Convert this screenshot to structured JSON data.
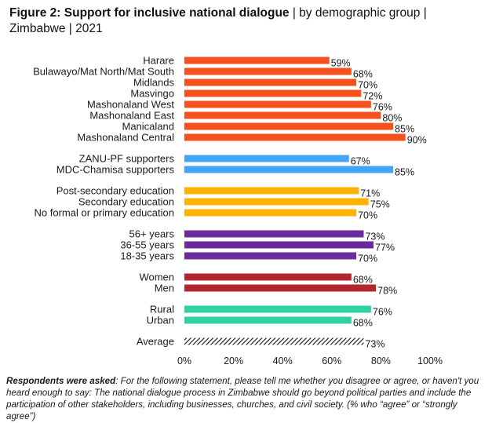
{
  "title": {
    "bold": "Figure 2: Support for inclusive national dialogue",
    "rest": " | by demographic group | Zimbabwe | 2021"
  },
  "note": {
    "lead": "Respondents were asked",
    "text": ": For the following statement, please tell me whether you disagree or agree, or haven't you heard enough to say: The national dialogue process in Zimbabwe should go beyond political parties and include the participation of other stakeholders, including businesses, churches, and civil society. (% who “agree” or “strongly agree”)"
  },
  "chart_data": {
    "type": "bar",
    "orientation": "horizontal",
    "xlim": [
      0,
      100
    ],
    "x_ticks": [
      "0%",
      "20%",
      "40%",
      "60%",
      "80%",
      "100%"
    ],
    "grid": false,
    "groups": [
      {
        "color": "#f4511e",
        "categories": [
          "Harare",
          "Bulawayo/Mat North/Mat South",
          "Midlands",
          "Masvingo",
          "Mashonaland West",
          "Mashonaland East",
          "Manicaland",
          "Mashonaland Central"
        ],
        "values": [
          59,
          68,
          70,
          72,
          76,
          80,
          85,
          90
        ]
      },
      {
        "color": "#42a5f5",
        "categories": [
          "ZANU-PF supporters",
          "MDC-Chamisa supporters"
        ],
        "values": [
          67,
          85
        ]
      },
      {
        "color": "#ffb300",
        "categories": [
          "Post-secondary education",
          "Secondary education",
          "No formal or primary education"
        ],
        "values": [
          71,
          75,
          70
        ]
      },
      {
        "color": "#6a2c9c",
        "categories": [
          "56+ years",
          "36-55 years",
          "18-35 years"
        ],
        "values": [
          73,
          77,
          70
        ]
      },
      {
        "color": "#b3262e",
        "categories": [
          "Women",
          "Men"
        ],
        "values": [
          68,
          78
        ]
      },
      {
        "color": "#2ed3a0",
        "categories": [
          "Rural",
          "Urban"
        ],
        "values": [
          76,
          68
        ]
      },
      {
        "color": "hatched-black",
        "categories": [
          "Average"
        ],
        "values": [
          73
        ]
      }
    ]
  }
}
